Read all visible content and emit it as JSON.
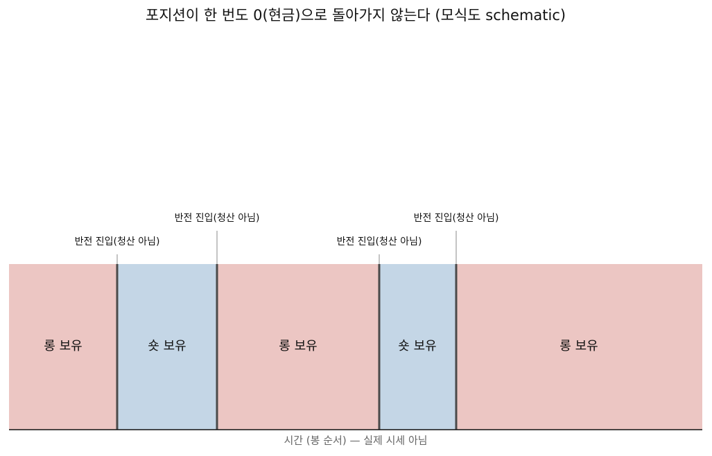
{
  "title": "포지션이 한 번도 0(현금)으로 돌아가지 않는다  (모식도 schematic)",
  "segments": [
    {
      "label": "롱 보유"
    },
    {
      "label": "숏 보유"
    },
    {
      "label": "롱 보유"
    },
    {
      "label": "숏 보유"
    },
    {
      "label": "롱 보유"
    }
  ],
  "markers": [
    {
      "label": "반전 진입(청산 아님)"
    },
    {
      "label": "반전 진입(청산 아님)"
    },
    {
      "label": "반전 진입(청산 아님)"
    },
    {
      "label": "반전 진입(청산 아님)"
    }
  ],
  "axis_label": "시간 (봉 순서) — 실제 시세 아님"
}
